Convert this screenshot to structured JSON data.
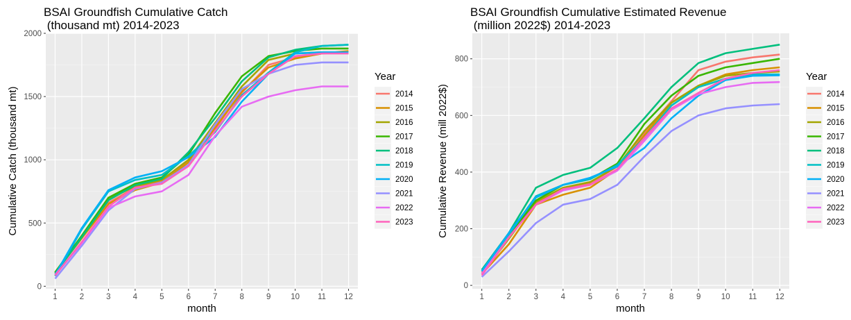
{
  "chart_data": [
    {
      "type": "line",
      "title": "BSAI Groundfish Cumulative Catch",
      "subtitle": " (thousand mt) 2014-2023",
      "xlabel": "month",
      "ylabel": "Cumulative Catch (thousand mt)",
      "x": [
        1,
        2,
        3,
        4,
        5,
        6,
        7,
        8,
        9,
        10,
        11,
        12
      ],
      "xlim": [
        0.65,
        12.35
      ],
      "ylim": [
        -20,
        2000
      ],
      "yticks": [
        0,
        500,
        1000,
        1500,
        2000
      ],
      "grid": true,
      "legend_title": "Year",
      "legend_position": "right",
      "series": [
        {
          "name": "2014",
          "color": "#F8766D",
          "values": [
            110,
            390,
            660,
            780,
            830,
            990,
            1260,
            1530,
            1750,
            1810,
            1840,
            1850
          ]
        },
        {
          "name": "2015",
          "color": "#D89000",
          "values": [
            110,
            380,
            650,
            760,
            820,
            980,
            1250,
            1540,
            1730,
            1800,
            1840,
            1860
          ]
        },
        {
          "name": "2016",
          "color": "#A3A500",
          "values": [
            105,
            380,
            690,
            790,
            840,
            1000,
            1290,
            1580,
            1790,
            1840,
            1850,
            1850
          ]
        },
        {
          "name": "2017",
          "color": "#39B600",
          "values": [
            110,
            400,
            700,
            810,
            860,
            1040,
            1370,
            1660,
            1820,
            1860,
            1880,
            1880
          ]
        },
        {
          "name": "2018",
          "color": "#00BF7D",
          "values": [
            100,
            390,
            680,
            800,
            850,
            1060,
            1330,
            1620,
            1810,
            1870,
            1900,
            1910
          ]
        },
        {
          "name": "2019",
          "color": "#00BFC4",
          "values": [
            80,
            450,
            750,
            840,
            880,
            1030,
            1220,
            1510,
            1690,
            1850,
            1900,
            1910
          ]
        },
        {
          "name": "2020",
          "color": "#00B0F6",
          "values": [
            90,
            460,
            760,
            860,
            910,
            1020,
            1180,
            1460,
            1680,
            1840,
            1850,
            1850
          ]
        },
        {
          "name": "2021",
          "color": "#9590FF",
          "values": [
            60,
            320,
            600,
            770,
            820,
            960,
            1280,
            1560,
            1680,
            1750,
            1770,
            1770
          ]
        },
        {
          "name": "2022",
          "color": "#E76BF3",
          "values": [
            90,
            340,
            620,
            710,
            750,
            880,
            1190,
            1420,
            1500,
            1550,
            1580,
            1580
          ]
        },
        {
          "name": "2023",
          "color": "#FF62BC",
          "values": [
            85,
            350,
            630,
            780,
            810,
            950,
            1230,
            1500,
            1680,
            1820,
            1840,
            1840
          ]
        }
      ]
    },
    {
      "type": "line",
      "title": "BSAI Groundfish Cumulative Estimated Revenue",
      "subtitle": " (million 2022$) 2014-2023",
      "xlabel": "month",
      "ylabel": "Cumulative Revenue (mill 2022$)",
      "x": [
        1,
        2,
        3,
        4,
        5,
        6,
        7,
        8,
        9,
        10,
        11,
        12
      ],
      "xlim": [
        0.65,
        12.35
      ],
      "ylim": [
        -12,
        890
      ],
      "yticks": [
        0,
        200,
        400,
        600,
        800
      ],
      "grid": true,
      "legend_title": "Year",
      "legend_position": "right",
      "series": [
        {
          "name": "2014",
          "color": "#F8766D",
          "values": [
            45,
            170,
            290,
            340,
            360,
            420,
            540,
            650,
            760,
            790,
            805,
            815
          ]
        },
        {
          "name": "2015",
          "color": "#D89000",
          "values": [
            40,
            145,
            285,
            320,
            345,
            410,
            530,
            645,
            705,
            745,
            760,
            770
          ]
        },
        {
          "name": "2016",
          "color": "#A3A500",
          "values": [
            40,
            165,
            295,
            345,
            365,
            420,
            545,
            645,
            705,
            740,
            750,
            755
          ]
        },
        {
          "name": "2017",
          "color": "#39B600",
          "values": [
            50,
            175,
            300,
            355,
            375,
            430,
            570,
            670,
            740,
            770,
            785,
            800
          ]
        },
        {
          "name": "2018",
          "color": "#00BF7D",
          "values": [
            55,
            185,
            345,
            390,
            415,
            485,
            590,
            700,
            785,
            820,
            835,
            850
          ]
        },
        {
          "name": "2019",
          "color": "#00BFC4",
          "values": [
            50,
            180,
            315,
            355,
            375,
            425,
            520,
            635,
            700,
            730,
            745,
            745
          ]
        },
        {
          "name": "2020",
          "color": "#00B0F6",
          "values": [
            50,
            185,
            310,
            355,
            380,
            420,
            485,
            590,
            670,
            725,
            740,
            742
          ]
        },
        {
          "name": "2021",
          "color": "#9590FF",
          "values": [
            30,
            120,
            220,
            285,
            305,
            355,
            455,
            545,
            600,
            625,
            635,
            640
          ]
        },
        {
          "name": "2022",
          "color": "#E76BF3",
          "values": [
            40,
            170,
            285,
            335,
            355,
            405,
            510,
            620,
            675,
            700,
            715,
            718
          ]
        },
        {
          "name": "2023",
          "color": "#FF62BC",
          "values": [
            35,
            170,
            285,
            340,
            355,
            410,
            520,
            625,
            680,
            730,
            750,
            760
          ]
        }
      ]
    }
  ]
}
